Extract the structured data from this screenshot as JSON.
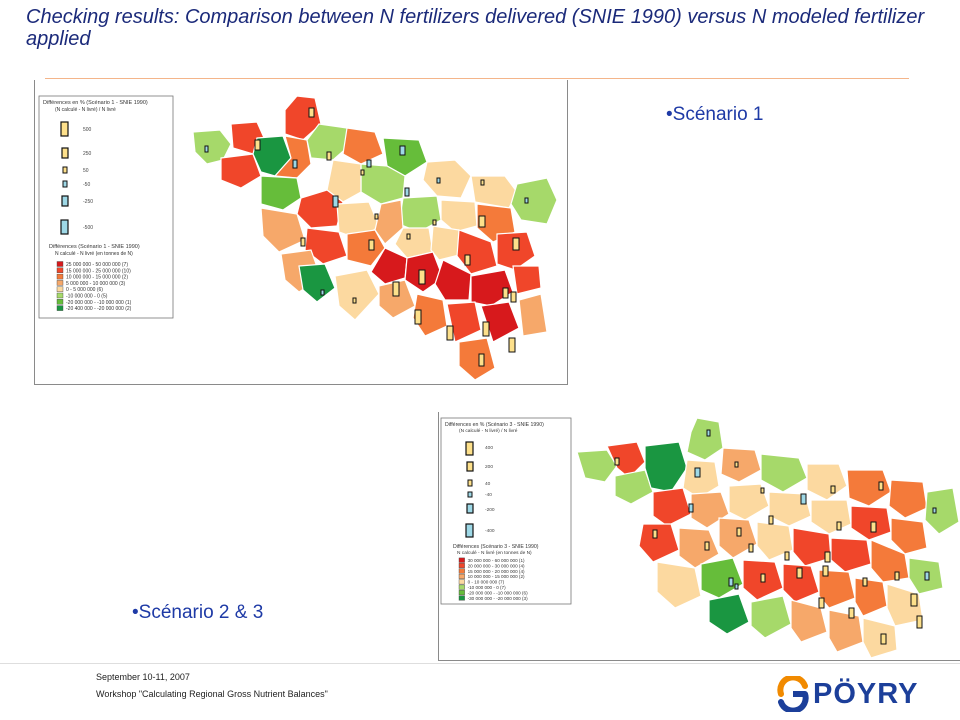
{
  "slide": {
    "title": "Checking results: Comparison between N fertilizers delivered (SNIE 1990) versus N modeled  fertilizer applied",
    "label_scenario1": "•Scénario 1",
    "label_scenario23": "•Scénario 2 & 3"
  },
  "map1": {
    "legend_top_title": "Différences en % (Scénario 1 - SNIE 1990)",
    "legend_top_subtitle": "(N calculé - N livré) / N livré",
    "legend_top_values": [
      "500",
      "250",
      "50",
      "-50",
      "-250",
      "-500"
    ],
    "legend_bottom_title": "Différences (Scénario 1 - SNIE 1990)",
    "legend_bottom_subtitle": "N calculé - N livré (en tonnes de N)",
    "legend_classes": [
      {
        "label": "25 000 000 - 50 000 000",
        "count": "(7)",
        "color": "#d7191c"
      },
      {
        "label": "15 000 000 - 25 000 000",
        "count": "(10)",
        "color": "#f0462a"
      },
      {
        "label": "10 000 000 - 15 000 000",
        "count": "(2)",
        "color": "#f47a3a"
      },
      {
        "label": "5 000 000 - 10 000 000",
        "count": "(3)",
        "color": "#f6a86a"
      },
      {
        "label": "0 - 5 000 000",
        "count": "(6)",
        "color": "#fcd9a0"
      },
      {
        "label": "-10 000 000 - 0",
        "count": "(5)",
        "color": "#a6d96a"
      },
      {
        "label": "-20 000 000 - -10 000 000",
        "count": "(1)",
        "color": "#66bd3a"
      },
      {
        "label": "-20 400 000 - -20 000 000",
        "count": "(2)",
        "color": "#1a9641"
      }
    ]
  },
  "map2": {
    "legend_top_title": "Différences en % (Scénario 3 - SNIE 1990)",
    "legend_top_subtitle": "(N calculé - N livré) / N livré",
    "legend_top_values": [
      "400",
      "200",
      "40",
      "-40",
      "-200",
      "-400"
    ],
    "legend_bottom_title": "Différences (Scénario 3 - SNIE 1990)",
    "legend_bottom_subtitle": "N calculé - N livré (en tonnes de N)",
    "legend_classes": [
      {
        "label": "30 000 000 - 60 000 000",
        "count": "(1)",
        "color": "#d7191c"
      },
      {
        "label": "20 000 000 - 30 000 000",
        "count": "(4)",
        "color": "#f0462a"
      },
      {
        "label": "15 000 000 - 20 000 000",
        "count": "(4)",
        "color": "#f47a3a"
      },
      {
        "label": "10 000 000 - 15 000 000",
        "count": "(2)",
        "color": "#f6a86a"
      },
      {
        "label": "0 - 10 000 000",
        "count": "(7)",
        "color": "#fcd9a0"
      },
      {
        "label": "-10 000 000 - 0",
        "count": "(7)",
        "color": "#a6d96a"
      },
      {
        "label": "-20 000 000 - -10 000 000",
        "count": "(6)",
        "color": "#66bd3a"
      },
      {
        "label": "-30 000 000 - -20 000 000",
        "count": "(3)",
        "color": "#1a9641"
      }
    ]
  },
  "footer": {
    "date": "September 10-11, 2007",
    "workshop": "Workshop \"Calculating Regional Gross Nutrient Balances\"",
    "logo_text": "PÖYRY",
    "logo_colors": {
      "blue": "#1c3f9a",
      "orange": "#f18a00"
    }
  }
}
